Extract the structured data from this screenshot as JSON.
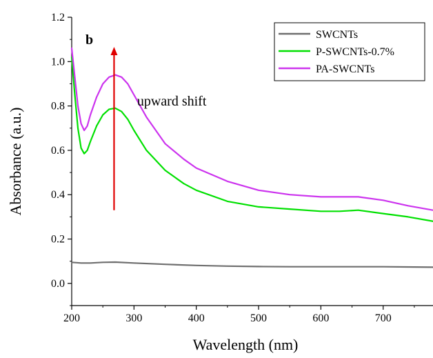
{
  "chart_data": {
    "type": "line",
    "panel_label": "b",
    "xlabel": "Wavelength (nm)",
    "ylabel": "Absorbance (a.u.)",
    "xlim": [
      200,
      780
    ],
    "ylim": [
      -0.1,
      1.2
    ],
    "xticks": [
      200,
      300,
      400,
      500,
      600,
      700
    ],
    "yticks": [
      "0.0",
      "0.2",
      "0.4",
      "0.6",
      "0.8",
      "1.0",
      "1.2"
    ],
    "ytick_values": [
      0.0,
      0.2,
      0.4,
      0.6,
      0.8,
      1.0,
      1.2
    ],
    "grid": false,
    "legend_position": "top-right",
    "annotation": {
      "text": "upward shift",
      "arrow_x": 268,
      "arrow_from_y": 0.33,
      "arrow_to_y": 1.06,
      "text_x": 305,
      "text_y": 0.82,
      "color": "#e00000"
    },
    "series": [
      {
        "name": "SWCNTs",
        "color": "#6e6e6e",
        "x": [
          200,
          215,
          230,
          250,
          270,
          300,
          350,
          400,
          450,
          500,
          550,
          600,
          650,
          700,
          750,
          780
        ],
        "y": [
          0.095,
          0.092,
          0.092,
          0.095,
          0.096,
          0.092,
          0.086,
          0.081,
          0.078,
          0.076,
          0.075,
          0.075,
          0.075,
          0.075,
          0.074,
          0.073
        ]
      },
      {
        "name": "P-SWCNTs-0.7%",
        "color": "#00e000",
        "x": [
          200,
          205,
          210,
          215,
          220,
          225,
          230,
          240,
          250,
          260,
          270,
          280,
          290,
          300,
          320,
          350,
          380,
          400,
          450,
          500,
          550,
          600,
          630,
          660,
          700,
          740,
          780
        ],
        "y": [
          1.02,
          0.85,
          0.7,
          0.61,
          0.585,
          0.6,
          0.64,
          0.71,
          0.76,
          0.785,
          0.79,
          0.775,
          0.74,
          0.69,
          0.6,
          0.51,
          0.45,
          0.42,
          0.37,
          0.345,
          0.335,
          0.325,
          0.325,
          0.33,
          0.315,
          0.3,
          0.28
        ]
      },
      {
        "name": "PA-SWCNTs",
        "color": "#cc33ee",
        "x": [
          200,
          205,
          210,
          215,
          220,
          225,
          230,
          240,
          250,
          260,
          270,
          280,
          290,
          300,
          320,
          350,
          380,
          400,
          450,
          500,
          550,
          600,
          630,
          660,
          700,
          740,
          780
        ],
        "y": [
          1.06,
          0.93,
          0.8,
          0.72,
          0.69,
          0.71,
          0.76,
          0.84,
          0.9,
          0.93,
          0.94,
          0.93,
          0.9,
          0.85,
          0.75,
          0.63,
          0.56,
          0.52,
          0.46,
          0.42,
          0.4,
          0.39,
          0.39,
          0.39,
          0.375,
          0.35,
          0.33
        ]
      }
    ]
  }
}
